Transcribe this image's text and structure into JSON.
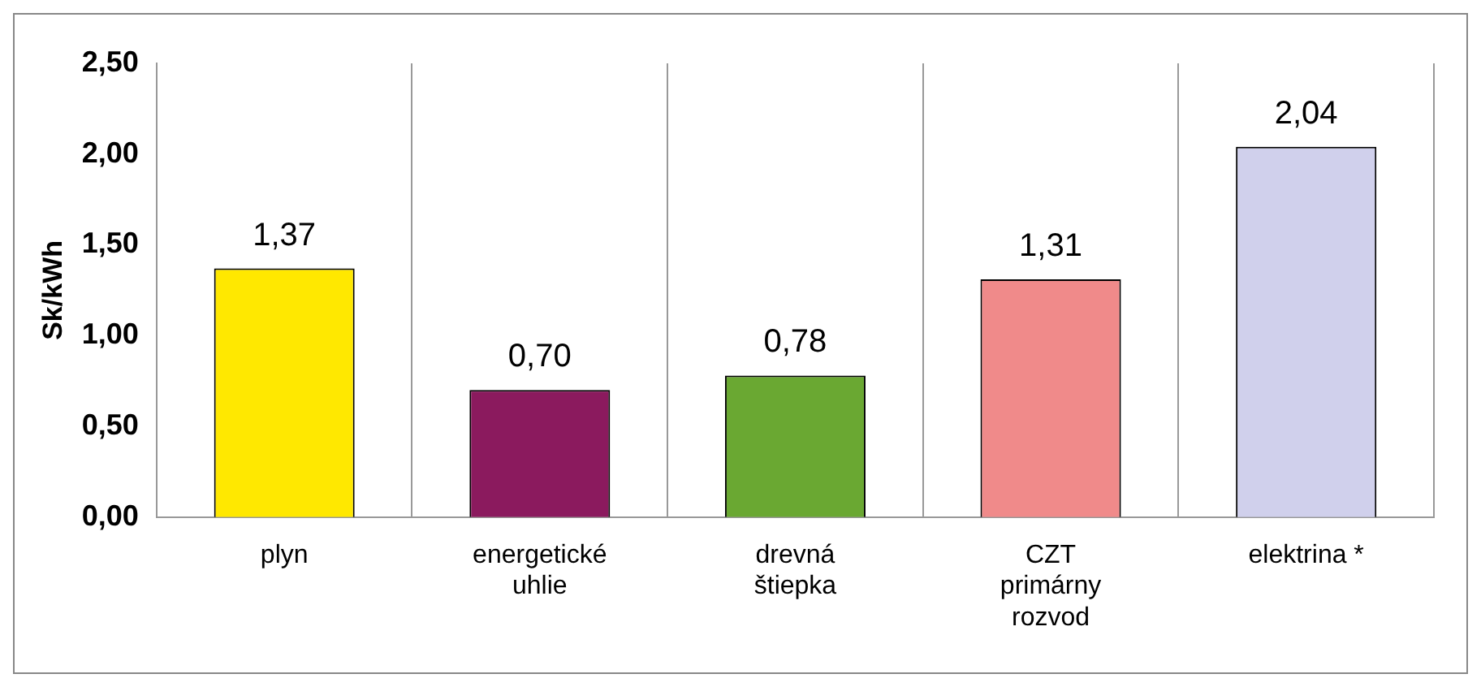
{
  "chart_data": {
    "type": "bar",
    "ylabel": "Sk/kWh",
    "categories": [
      "plyn",
      "energetické uhlie",
      "drevná štiepka",
      "CZT primárny rozvod",
      "elektrina *"
    ],
    "values": [
      1.37,
      0.7,
      0.78,
      1.31,
      2.04
    ],
    "colors": [
      "#ffe800",
      "#8b1a5e",
      "#6aa832",
      "#f08a8a",
      "#d0d0ec"
    ],
    "value_labels": [
      "1,37",
      "0,70",
      "0,78",
      "1,31",
      "2,04"
    ],
    "ylim": [
      0,
      2.5
    ],
    "yticks": [
      {
        "value": 0,
        "label": "0,00"
      },
      {
        "value": 0.5,
        "label": "0,50"
      },
      {
        "value": 1,
        "label": "1,00"
      },
      {
        "value": 1.5,
        "label": "1,50"
      },
      {
        "value": 2,
        "label": "2,00"
      },
      {
        "value": 2.5,
        "label": "2,50"
      }
    ],
    "grid": "x",
    "legend": false
  }
}
